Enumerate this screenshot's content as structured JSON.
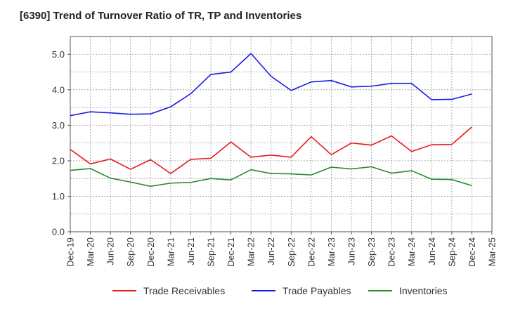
{
  "chart_data": {
    "type": "line",
    "title": "[6390]  Trend of Turnover Ratio of TR, TP and Inventories",
    "xlabel": "",
    "ylabel": "",
    "ylim": [
      0,
      5.5
    ],
    "yticks": [
      "0.0",
      "1.0",
      "2.0",
      "3.0",
      "4.0",
      "5.0"
    ],
    "xtick_labels": [
      "Dec-19",
      "Mar-20",
      "Jun-20",
      "Sep-20",
      "Dec-20",
      "Mar-21",
      "Jun-21",
      "Sep-21",
      "Dec-21",
      "Mar-22",
      "Jun-22",
      "Sep-22",
      "Dec-22",
      "Mar-23",
      "Jun-23",
      "Sep-23",
      "Dec-23",
      "Mar-24",
      "Jun-24",
      "Sep-24",
      "Dec-24",
      "Mar-25"
    ],
    "x": [
      "Dec-19",
      "Mar-20",
      "Jun-20",
      "Sep-20",
      "Dec-20",
      "Mar-21",
      "Jun-21",
      "Sep-21",
      "Dec-21",
      "Mar-22",
      "Jun-22",
      "Sep-22",
      "Dec-22",
      "Mar-23",
      "Jun-23",
      "Sep-23",
      "Dec-23",
      "Mar-24",
      "Jun-24",
      "Sep-24",
      "Dec-24"
    ],
    "grid": true,
    "legend_position": "bottom",
    "series": [
      {
        "name": "Trade Receivables",
        "color": "#e8191b",
        "values": [
          2.32,
          1.91,
          2.05,
          1.76,
          2.03,
          1.64,
          2.04,
          2.07,
          2.53,
          2.1,
          2.16,
          2.1,
          2.68,
          2.17,
          2.5,
          2.44,
          2.7,
          2.26,
          2.45,
          2.46,
          2.95
        ]
      },
      {
        "name": "Trade Payables",
        "color": "#1a1ae6",
        "values": [
          3.27,
          3.38,
          3.35,
          3.31,
          3.32,
          3.52,
          3.89,
          4.43,
          4.5,
          5.02,
          4.38,
          3.98,
          4.22,
          4.26,
          4.08,
          4.1,
          4.18,
          4.18,
          3.72,
          3.73,
          3.88
        ]
      },
      {
        "name": "Inventories",
        "color": "#2a8a2a",
        "values": [
          1.73,
          1.78,
          1.51,
          1.4,
          1.28,
          1.37,
          1.39,
          1.5,
          1.46,
          1.75,
          1.64,
          1.63,
          1.6,
          1.82,
          1.77,
          1.83,
          1.65,
          1.72,
          1.48,
          1.47,
          1.3
        ]
      }
    ]
  }
}
